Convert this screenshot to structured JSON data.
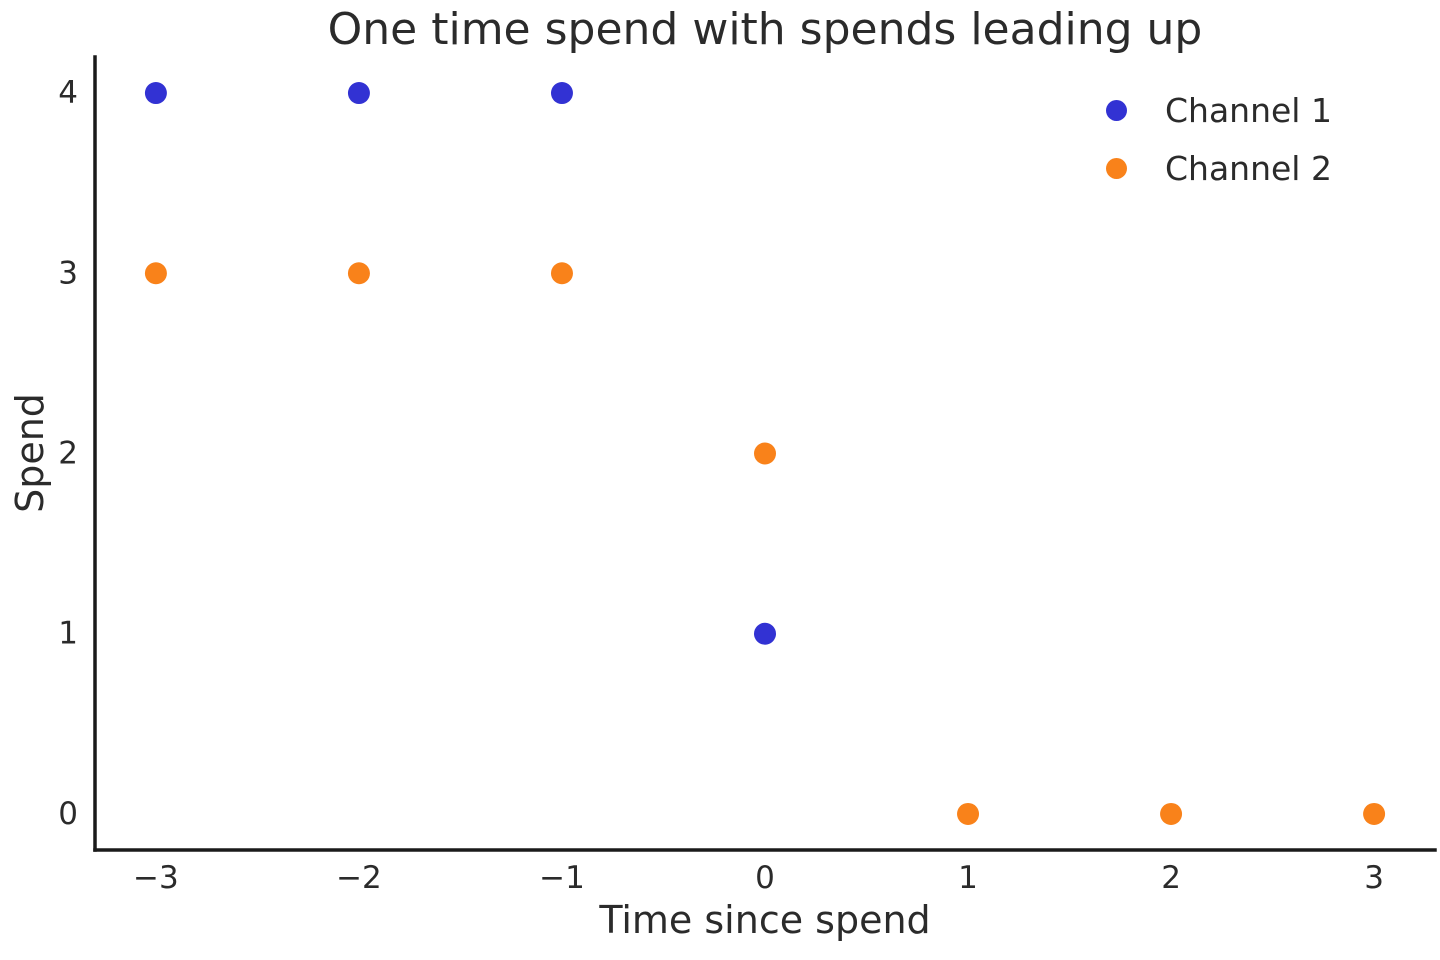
{
  "chart_data": {
    "type": "scatter",
    "title": "One time spend with spends leading up",
    "xlabel": "Time since spend",
    "ylabel": "Spend",
    "xlim": [
      -3.3,
      3.3
    ],
    "ylim": [
      -0.2,
      4.2
    ],
    "grid": false,
    "legend_position": "upper right",
    "legend_frame": false,
    "x_ticks": {
      "values": [
        -3,
        -2,
        -1,
        0,
        1,
        2,
        3
      ],
      "labels": [
        "−3",
        "−2",
        "−1",
        "0",
        "1",
        "2",
        "3"
      ]
    },
    "y_ticks": {
      "values": [
        0,
        1,
        2,
        3,
        4
      ],
      "labels": [
        "0",
        "1",
        "2",
        "3",
        "4"
      ]
    },
    "series": [
      {
        "name": "Channel 1",
        "color": "#3232d3",
        "points": [
          [
            -3,
            4
          ],
          [
            -2,
            4
          ],
          [
            -1,
            4
          ],
          [
            0,
            1
          ]
        ]
      },
      {
        "name": "Channel 2",
        "color": "#f9821a",
        "points": [
          [
            -3,
            3
          ],
          [
            -2,
            3
          ],
          [
            -1,
            3
          ],
          [
            0,
            2
          ],
          [
            1,
            0
          ],
          [
            2,
            0
          ],
          [
            3,
            0
          ]
        ]
      }
    ],
    "colors": {
      "text": "#2b2b2b",
      "spine": "#1a1a1a",
      "background": "#ffffff"
    }
  }
}
